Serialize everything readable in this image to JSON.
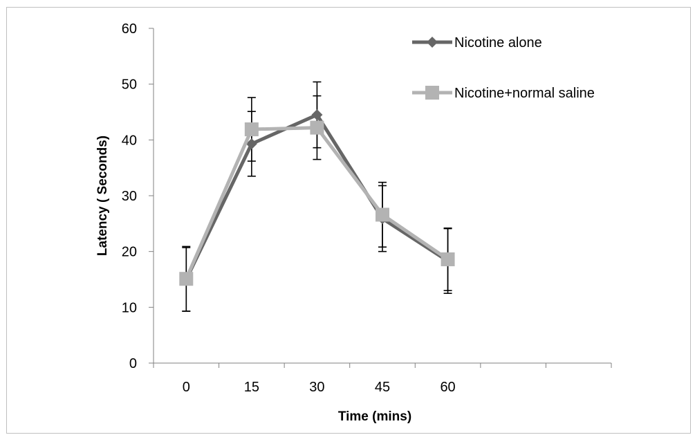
{
  "chart_data": {
    "type": "line",
    "title": "",
    "xlabel": "Time (mins)",
    "ylabel": "Latency ( Seconds)",
    "categories": [
      "0",
      "15",
      "30",
      "45",
      "60"
    ],
    "x_axis_slots": 7,
    "ylim": [
      0,
      60
    ],
    "yticks": [
      0,
      10,
      20,
      30,
      40,
      50,
      60
    ],
    "grid": false,
    "legend_placement": "top-right",
    "series": [
      {
        "name": "Nicotine alone",
        "marker": "diamond",
        "color": "#666666",
        "values": [
          15.0,
          39.3,
          44.5,
          25.9,
          18.3
        ],
        "error": [
          5.7,
          5.8,
          5.9,
          5.9,
          5.8
        ]
      },
      {
        "name": "Nicotine+normal saline",
        "marker": "square",
        "color": "#b3b3b3",
        "values": [
          15.1,
          41.9,
          42.2,
          26.6,
          18.6
        ],
        "error": [
          5.8,
          5.7,
          5.7,
          5.8,
          5.6
        ]
      }
    ]
  }
}
